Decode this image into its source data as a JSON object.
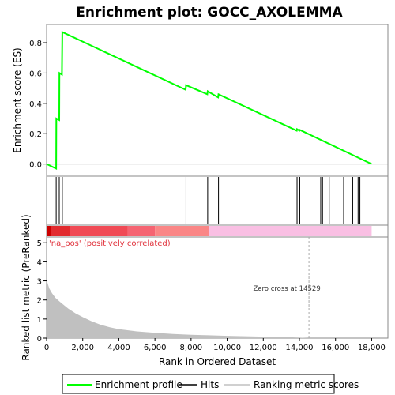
{
  "chart_data": {
    "type": "line",
    "title": "Enrichment plot: GOCC_AXOLEMMA",
    "panels": {
      "enrichment": {
        "ylabel": "Enrichment score (ES)",
        "ylim": [
          -0.08,
          0.92
        ],
        "yticks": [
          0.0,
          0.2,
          0.4,
          0.6,
          0.8
        ],
        "ytick_labels": [
          "0.0",
          "0.2",
          "0.4",
          "0.6",
          "0.8"
        ],
        "series": [
          {
            "name": "Enrichment profile",
            "color": "#00ff00",
            "x": [
              0,
              530,
              540,
              700,
              710,
              850,
              870,
              7700,
              7720,
              8900,
              8920,
              9500,
              9520,
              13850,
              13870,
              14000,
              14020,
              18000
            ],
            "y": [
              0.0,
              -0.03,
              0.3,
              0.29,
              0.6,
              0.59,
              0.87,
              0.49,
              0.52,
              0.46,
              0.48,
              0.44,
              0.46,
              0.22,
              0.23,
              0.22,
              0.225,
              0.0
            ]
          }
        ]
      },
      "hits": {
        "color": "#000000",
        "positions": [
          530,
          700,
          870,
          7720,
          8920,
          9520,
          13870,
          14020,
          15180,
          15280,
          15650,
          16450,
          16950,
          17250,
          17350
        ]
      },
      "ranking_bar": {
        "segments": [
          {
            "start": 0,
            "end": 250,
            "color": "#cc0000"
          },
          {
            "start": 250,
            "end": 1300,
            "color": "#e22a2e"
          },
          {
            "start": 1300,
            "end": 4500,
            "color": "#f04a55"
          },
          {
            "start": 4500,
            "end": 6000,
            "color": "#f56472"
          },
          {
            "start": 6000,
            "end": 9000,
            "color": "#fa8686"
          },
          {
            "start": 9000,
            "end": 18000,
            "color": "#f9bfe3"
          }
        ]
      },
      "metric": {
        "ylabel": "Ranked list metric (PreRanked)",
        "ylim": [
          0,
          5.3
        ],
        "yticks": [
          0,
          1,
          2,
          3,
          4,
          5
        ],
        "ytick_labels": [
          "0",
          "1",
          "2",
          "3",
          "4",
          "5"
        ],
        "color": "#c0c0c0",
        "x": [
          0,
          50,
          150,
          300,
          500,
          800,
          1200,
          1600,
          2000,
          2500,
          3000,
          3500,
          4000,
          5000,
          6000,
          7000,
          8000,
          9000,
          10000,
          11000,
          12000,
          13000,
          14000,
          14529
        ],
        "y": [
          3.3,
          2.9,
          2.6,
          2.35,
          2.1,
          1.85,
          1.55,
          1.3,
          1.1,
          0.88,
          0.7,
          0.57,
          0.47,
          0.35,
          0.28,
          0.22,
          0.18,
          0.15,
          0.12,
          0.1,
          0.08,
          0.06,
          0.03,
          0.0
        ],
        "positive_label": "'na_pos' (positively correlated)",
        "zero_cross_label": "Zero cross at 14529",
        "zero_cross": 14529
      }
    },
    "xlabel": "Rank in Ordered Dataset",
    "xlim": [
      0,
      18900
    ],
    "xticks": [
      0,
      2000,
      4000,
      6000,
      8000,
      10000,
      12000,
      14000,
      16000,
      18000
    ],
    "xtick_labels": [
      "0",
      "2,000",
      "4,000",
      "6,000",
      "8,000",
      "10,000",
      "12,000",
      "14,000",
      "16,000",
      "18,000"
    ],
    "legend": {
      "placement": "bottom",
      "entries": [
        {
          "label": "Enrichment profile",
          "color": "#00ff00"
        },
        {
          "label": "Hits",
          "color": "#000000"
        },
        {
          "label": "Ranking metric scores",
          "color": "#c0c0c0"
        }
      ]
    }
  }
}
